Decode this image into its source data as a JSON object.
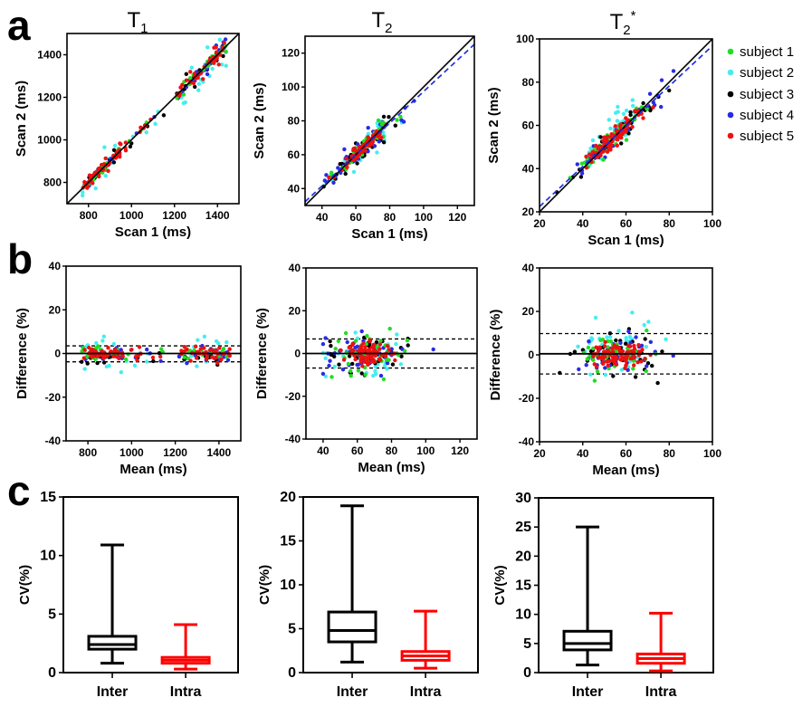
{
  "panel_letters": [
    "a",
    "b",
    "c"
  ],
  "column_titles": [
    {
      "main": "T",
      "sub": "1",
      "sup": ""
    },
    {
      "main": "T",
      "sub": "2",
      "sup": ""
    },
    {
      "main": "T",
      "sub": "2",
      "sup": "*"
    }
  ],
  "legend": [
    {
      "label": "subject 1",
      "color": "#22dd22"
    },
    {
      "label": "subject 2",
      "color": "#44eeee"
    },
    {
      "label": "subject 3",
      "color": "#000000"
    },
    {
      "label": "subject 4",
      "color": "#2a2ae6"
    },
    {
      "label": "subject 5",
      "color": "#ee1111"
    }
  ],
  "chart_data": [
    {
      "id": "a-T1",
      "type": "scatter",
      "title": "T1",
      "xlabel": "Scan 1 (ms)",
      "ylabel": "Scan 2 (ms)",
      "xlim": [
        700,
        1500
      ],
      "ylim": [
        700,
        1500
      ],
      "xticks": [
        800,
        1000,
        1200,
        1400
      ],
      "yticks": [
        800,
        1000,
        1200,
        1400
      ],
      "identity_line": true,
      "regression_line": {
        "slope": 1.0,
        "intercept": 0
      },
      "clusters": [
        {
          "x_range": [
            760,
            960
          ],
          "spread_pct": 2.5
        },
        {
          "x_range": [
            960,
            1180
          ],
          "spread_pct": 2.5
        },
        {
          "x_range": [
            1200,
            1450
          ],
          "spread_pct": 2.5
        }
      ],
      "series": [
        "subject 1",
        "subject 2",
        "subject 3",
        "subject 4",
        "subject 5"
      ]
    },
    {
      "id": "a-T2",
      "type": "scatter",
      "title": "T2",
      "xlabel": "Scan 1 (ms)",
      "ylabel": "Scan 2 (ms)",
      "xlim": [
        30,
        130
      ],
      "ylim": [
        30,
        130
      ],
      "xticks": [
        40,
        60,
        80,
        100,
        120
      ],
      "yticks": [
        40,
        60,
        80,
        100,
        120
      ],
      "identity_line": true,
      "regression_line": {
        "slope": 0.93,
        "intercept": 4.3
      },
      "clusters": [
        {
          "x_range": [
            40,
            125
          ],
          "center": 65,
          "spread_pct": 4
        }
      ],
      "series": [
        "subject 1",
        "subject 2",
        "subject 3",
        "subject 4",
        "subject 5"
      ]
    },
    {
      "id": "a-T2star",
      "type": "scatter",
      "title": "T2*",
      "xlabel": "Scan 1 (ms)",
      "ylabel": "Scan 2 (ms)",
      "xlim": [
        20,
        100
      ],
      "ylim": [
        20,
        100
      ],
      "xticks": [
        20,
        40,
        60,
        80,
        100
      ],
      "yticks": [
        20,
        40,
        60,
        80,
        100
      ],
      "identity_line": true,
      "regression_line": {
        "slope": 0.93,
        "intercept": 3.8
      },
      "clusters": [
        {
          "x_range": [
            28,
            92
          ],
          "center": 54,
          "spread_pct": 5
        }
      ],
      "series": [
        "subject 1",
        "subject 2",
        "subject 3",
        "subject 4",
        "subject 5"
      ]
    },
    {
      "id": "b-T1",
      "type": "scatter",
      "title": "Bland-Altman T1",
      "xlabel": "Mean (ms)",
      "ylabel": "Difference (%)",
      "xlim": [
        700,
        1500
      ],
      "ylim": [
        -40,
        40
      ],
      "xticks": [
        800,
        1000,
        1200,
        1400
      ],
      "yticks": [
        -40,
        -20,
        0,
        20,
        40
      ],
      "mean_difference": 0,
      "limits_of_agreement": [
        -3.8,
        3.5
      ],
      "series": [
        "subject 1",
        "subject 2",
        "subject 3",
        "subject 4",
        "subject 5"
      ]
    },
    {
      "id": "b-T2",
      "type": "scatter",
      "title": "Bland-Altman T2",
      "xlabel": "Mean (ms)",
      "ylabel": "Difference (%)",
      "xlim": [
        30,
        130
      ],
      "ylim": [
        -40,
        40
      ],
      "xticks": [
        40,
        60,
        80,
        100,
        120
      ],
      "yticks": [
        -40,
        -20,
        0,
        20,
        40
      ],
      "mean_difference": 0,
      "limits_of_agreement": [
        -6.8,
        6.8
      ],
      "series": [
        "subject 1",
        "subject 2",
        "subject 3",
        "subject 4",
        "subject 5"
      ]
    },
    {
      "id": "b-T2star",
      "type": "scatter",
      "title": "Bland-Altman T2*",
      "xlabel": "Mean (ms)",
      "ylabel": "Difference (%)",
      "xlim": [
        20,
        100
      ],
      "ylim": [
        -40,
        40
      ],
      "xticks": [
        20,
        40,
        60,
        80,
        100
      ],
      "yticks": [
        -40,
        -20,
        0,
        20,
        40
      ],
      "mean_difference": 0.5,
      "limits_of_agreement": [
        -8.8,
        9.8
      ],
      "series": [
        "subject 1",
        "subject 2",
        "subject 3",
        "subject 4",
        "subject 5"
      ]
    },
    {
      "id": "c-T1",
      "type": "box",
      "ylabel": "CV(%)",
      "ylim": [
        0,
        15
      ],
      "yticks": [
        0,
        5,
        10,
        15
      ],
      "categories": [
        "Inter",
        "Intra"
      ],
      "boxes": [
        {
          "name": "Inter",
          "min": 0.8,
          "q1": 2.0,
          "median": 2.4,
          "q3": 3.1,
          "max": 10.9,
          "color": "#000000"
        },
        {
          "name": "Intra",
          "min": 0.3,
          "q1": 0.8,
          "median": 1.05,
          "q3": 1.3,
          "max": 4.1,
          "color": "#ff0000"
        }
      ]
    },
    {
      "id": "c-T2",
      "type": "box",
      "ylabel": "CV(%)",
      "ylim": [
        0,
        20
      ],
      "yticks": [
        0,
        5,
        10,
        15,
        20
      ],
      "categories": [
        "Inter",
        "Intra"
      ],
      "boxes": [
        {
          "name": "Inter",
          "min": 1.2,
          "q1": 3.5,
          "median": 4.8,
          "q3": 6.9,
          "max": 19.0,
          "color": "#000000"
        },
        {
          "name": "Intra",
          "min": 0.5,
          "q1": 1.4,
          "median": 1.9,
          "q3": 2.4,
          "max": 7.0,
          "color": "#ff0000"
        }
      ]
    },
    {
      "id": "c-T2star",
      "type": "box",
      "ylabel": "CV(%)",
      "ylim": [
        0,
        30
      ],
      "yticks": [
        0,
        5,
        10,
        15,
        20,
        25,
        30
      ],
      "categories": [
        "Inter",
        "Intra"
      ],
      "boxes": [
        {
          "name": "Inter",
          "min": 1.3,
          "q1": 3.9,
          "median": 5.0,
          "q3": 7.1,
          "max": 25.0,
          "color": "#000000"
        },
        {
          "name": "Intra",
          "min": 0.3,
          "q1": 1.6,
          "median": 2.4,
          "q3": 3.2,
          "max": 10.2,
          "color": "#ff0000"
        }
      ]
    }
  ]
}
